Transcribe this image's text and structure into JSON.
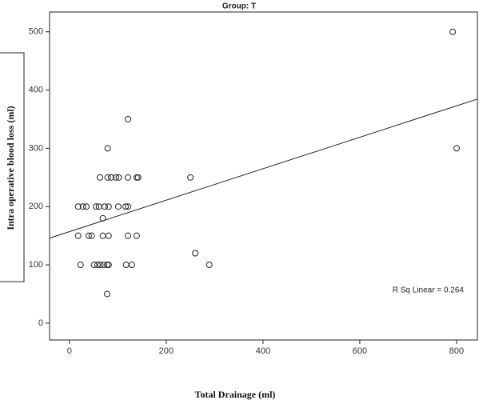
{
  "chart_data": {
    "type": "scatter",
    "title": "Group: T",
    "x_label": "Total Drainage (ml)",
    "y_label": "Intra operative blood loss (ml)",
    "annotation": "R Sq Linear = 0.264",
    "xlim": [
      -41,
      843
    ],
    "ylim": [
      -29,
      534
    ],
    "xticks": [
      0,
      200,
      400,
      600,
      800
    ],
    "yticks": [
      0,
      100,
      200,
      300,
      400,
      500
    ],
    "fit": {
      "intercept": 157,
      "slope": 0.27
    },
    "series": [
      {
        "name": "Group T",
        "x": [
          792,
          800,
          79,
          121,
          63,
          79,
          86,
          96,
          102,
          121,
          139,
          142,
          250,
          18,
          28,
          35,
          55,
          61,
          73,
          81,
          101,
          116,
          121,
          69,
          18,
          40,
          46,
          69,
          81,
          121,
          139,
          260,
          23,
          51,
          58,
          64,
          71,
          78,
          81,
          117,
          129,
          289,
          78
        ],
        "values": [
          500,
          300,
          300,
          350,
          250,
          250,
          250,
          250,
          250,
          250,
          250,
          250,
          250,
          200,
          200,
          200,
          200,
          200,
          200,
          200,
          200,
          200,
          200,
          180,
          150,
          150,
          150,
          150,
          150,
          150,
          150,
          120,
          100,
          100,
          100,
          100,
          100,
          100,
          100,
          100,
          100,
          100,
          50
        ]
      }
    ]
  }
}
